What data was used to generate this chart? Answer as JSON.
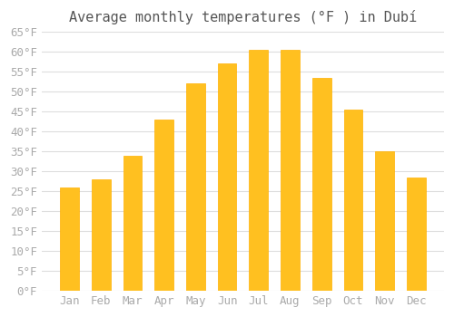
{
  "title": "Average monthly temperatures (°F ) in Dubí",
  "months": [
    "Jan",
    "Feb",
    "Mar",
    "Apr",
    "May",
    "Jun",
    "Jul",
    "Aug",
    "Sep",
    "Oct",
    "Nov",
    "Dec"
  ],
  "values": [
    26,
    28,
    34,
    43,
    52,
    57,
    60.5,
    60.5,
    53.5,
    45.5,
    35,
    28.5
  ],
  "bar_color": "#FFC020",
  "bar_edge_color": "#FFB000",
  "background_color": "#ffffff",
  "grid_color": "#dddddd",
  "text_color": "#aaaaaa",
  "title_color": "#555555",
  "ylim": [
    0,
    65
  ],
  "yticks": [
    0,
    5,
    10,
    15,
    20,
    25,
    30,
    35,
    40,
    45,
    50,
    55,
    60,
    65
  ],
  "ylabel_suffix": "°F",
  "title_fontsize": 11,
  "tick_fontsize": 9
}
